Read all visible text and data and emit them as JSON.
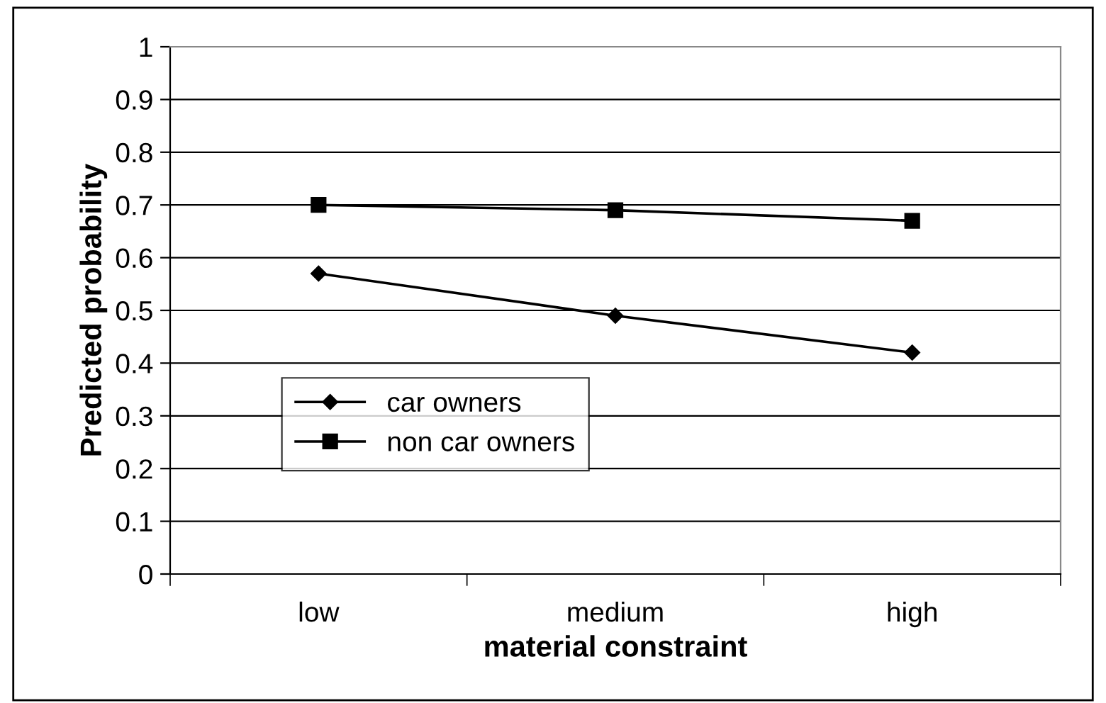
{
  "chart_data": {
    "type": "line",
    "xlabel": "material constraint",
    "ylabel": "Predicted probability",
    "categories": [
      "low",
      "medium",
      "high"
    ],
    "series": [
      {
        "name": "car owners",
        "color": "#000000",
        "marker": "diamond",
        "values": [
          0.57,
          0.49,
          0.42
        ]
      },
      {
        "name": "non car owners",
        "color": "#000000",
        "marker": "square",
        "values": [
          0.7,
          0.69,
          0.67
        ]
      }
    ],
    "ylim": [
      0,
      1
    ],
    "yticks": [
      0,
      0.1,
      0.2,
      0.3,
      0.4,
      0.5,
      0.6,
      0.7,
      0.8,
      0.9,
      1
    ],
    "grid": "y",
    "legend": "bottom left",
    "line_style": "solid"
  }
}
